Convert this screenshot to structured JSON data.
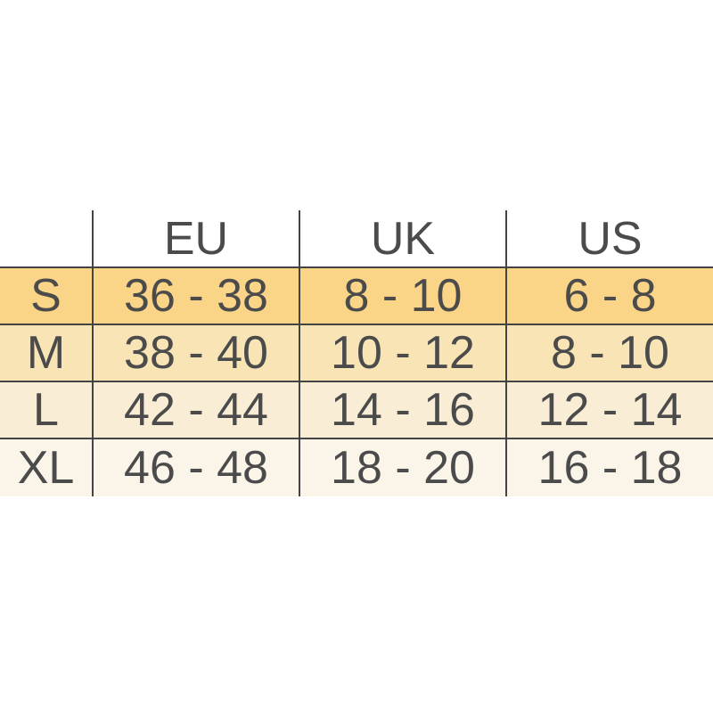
{
  "page": {
    "background": "#ffffff"
  },
  "table": {
    "headers": [
      "",
      "EU",
      "UK",
      "US"
    ],
    "rows": [
      {
        "size": "S",
        "values": [
          "36 - 38",
          "8 - 10",
          "6 - 8"
        ],
        "bg": "#fad487"
      },
      {
        "size": "M",
        "values": [
          "38 - 40",
          "10 - 12",
          "8 - 10"
        ],
        "bg": "#f8e4b4"
      },
      {
        "size": "L",
        "values": [
          "42 - 44",
          "14 - 16",
          "12 - 14"
        ],
        "bg": "#f9eed5"
      },
      {
        "size": "XL",
        "values": [
          "46 - 48",
          "18 - 20",
          "16 - 18"
        ],
        "bg": "#fbf5e9"
      }
    ],
    "colors": {
      "border": "#434343",
      "text": "#4b4b4b",
      "header_bg": "#ffffff",
      "row_s_bg": "#fad487",
      "row_m_bg": "#f8e4b4",
      "row_l_bg": "#f9eed5",
      "row_xl_bg": "#fbf5e9"
    }
  },
  "chart_data": {
    "type": "table",
    "columns": [
      "",
      "EU",
      "UK",
      "US"
    ],
    "rows": [
      [
        "S",
        "36 - 38",
        "8 - 10",
        "6 - 8"
      ],
      [
        "M",
        "38 - 40",
        "10 - 12",
        "8 - 10"
      ],
      [
        "L",
        "42 - 44",
        "14 - 16",
        "12 - 14"
      ],
      [
        "XL",
        "46 - 48",
        "18 - 20",
        "16 - 18"
      ]
    ]
  }
}
